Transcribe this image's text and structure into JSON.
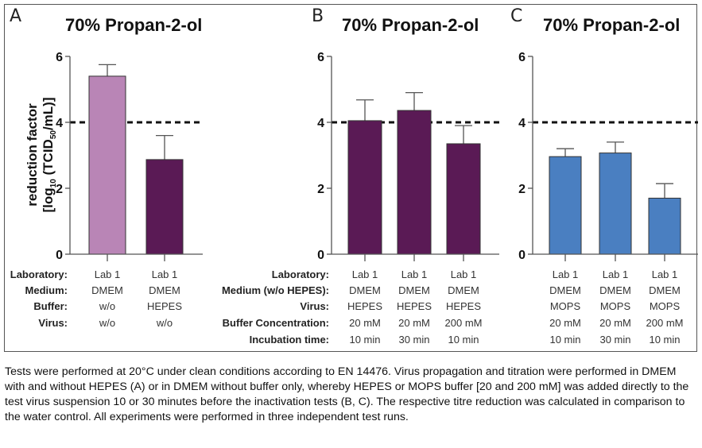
{
  "caption": "Tests were performed at 20°C under clean conditions according to EN 14476. Virus propagation and titration were performed in DMEM with and without HEPES (A) or in DMEM without buffer only, whereby HEPES or MOPS buffer [20 and 200 mM] was added directly to the test virus suspension 10 or 30 minutes before the inactivation tests (B, C). The respective titre reduction was calculated in comparison to the water control. All experiments were performed in three independent test runs.",
  "ylabel_line1": "reduction factor",
  "ylabel_line2_parts": [
    "[log",
    "10",
    " (TCID",
    "50",
    "/mL)]"
  ],
  "chart_data": [
    {
      "type": "bar",
      "panel": "A",
      "title": "70% Propan-2-ol",
      "ylabel": "reduction factor [log10 (TCID50/mL)]",
      "ylim": [
        0,
        6
      ],
      "yticks": [
        0,
        2,
        4,
        6
      ],
      "threshold": 4,
      "bar_colors": [
        "#b985b6",
        "#5a1a55"
      ],
      "values": [
        5.4,
        2.87
      ],
      "errors_upper": [
        5.75,
        3.6
      ],
      "table": {
        "row_headers": [
          "Laboratory:",
          "Medium:",
          "Buffer:",
          "Virus:"
        ],
        "columns": [
          [
            "Lab 1",
            "DMEM",
            "w/o",
            "w/o"
          ],
          [
            "Lab 1",
            "DMEM",
            "HEPES",
            "w/o"
          ]
        ]
      }
    },
    {
      "type": "bar",
      "panel": "B",
      "title": "70% Propan-2-ol",
      "ylim": [
        0,
        6
      ],
      "yticks": [
        0,
        2,
        4,
        6
      ],
      "threshold": 4,
      "bar_colors": [
        "#5a1a55",
        "#5a1a55",
        "#5a1a55"
      ],
      "values": [
        4.05,
        4.36,
        3.35
      ],
      "errors_upper": [
        4.68,
        4.9,
        3.9
      ],
      "table": {
        "row_headers": [
          "Laboratory:",
          "Medium (w/o HEPES):",
          "Virus:",
          "Buffer Concentration:",
          "Incubation time:"
        ],
        "columns": [
          [
            "Lab 1",
            "DMEM",
            "HEPES",
            "20 mM",
            "10 min"
          ],
          [
            "Lab 1",
            "DMEM",
            "HEPES",
            "20 mM",
            "30 min"
          ],
          [
            "Lab 1",
            "DMEM",
            "HEPES",
            "200 mM",
            "10 min"
          ]
        ]
      }
    },
    {
      "type": "bar",
      "panel": "C",
      "title": "70% Propan-2-ol",
      "ylim": [
        0,
        6
      ],
      "yticks": [
        0,
        2,
        4,
        6
      ],
      "threshold": 4,
      "bar_colors": [
        "#4a7fc1",
        "#4a7fc1",
        "#4a7fc1"
      ],
      "values": [
        2.96,
        3.07,
        1.7
      ],
      "errors_upper": [
        3.2,
        3.4,
        2.14
      ],
      "table": {
        "row_headers": [],
        "columns": [
          [
            "Lab 1",
            "DMEM",
            "MOPS",
            "20 mM",
            "10 min"
          ],
          [
            "Lab 1",
            "DMEM",
            "MOPS",
            "20 mM",
            "30 min"
          ],
          [
            "Lab 1",
            "DMEM",
            "MOPS",
            "200 mM",
            "10 min"
          ]
        ]
      }
    }
  ]
}
